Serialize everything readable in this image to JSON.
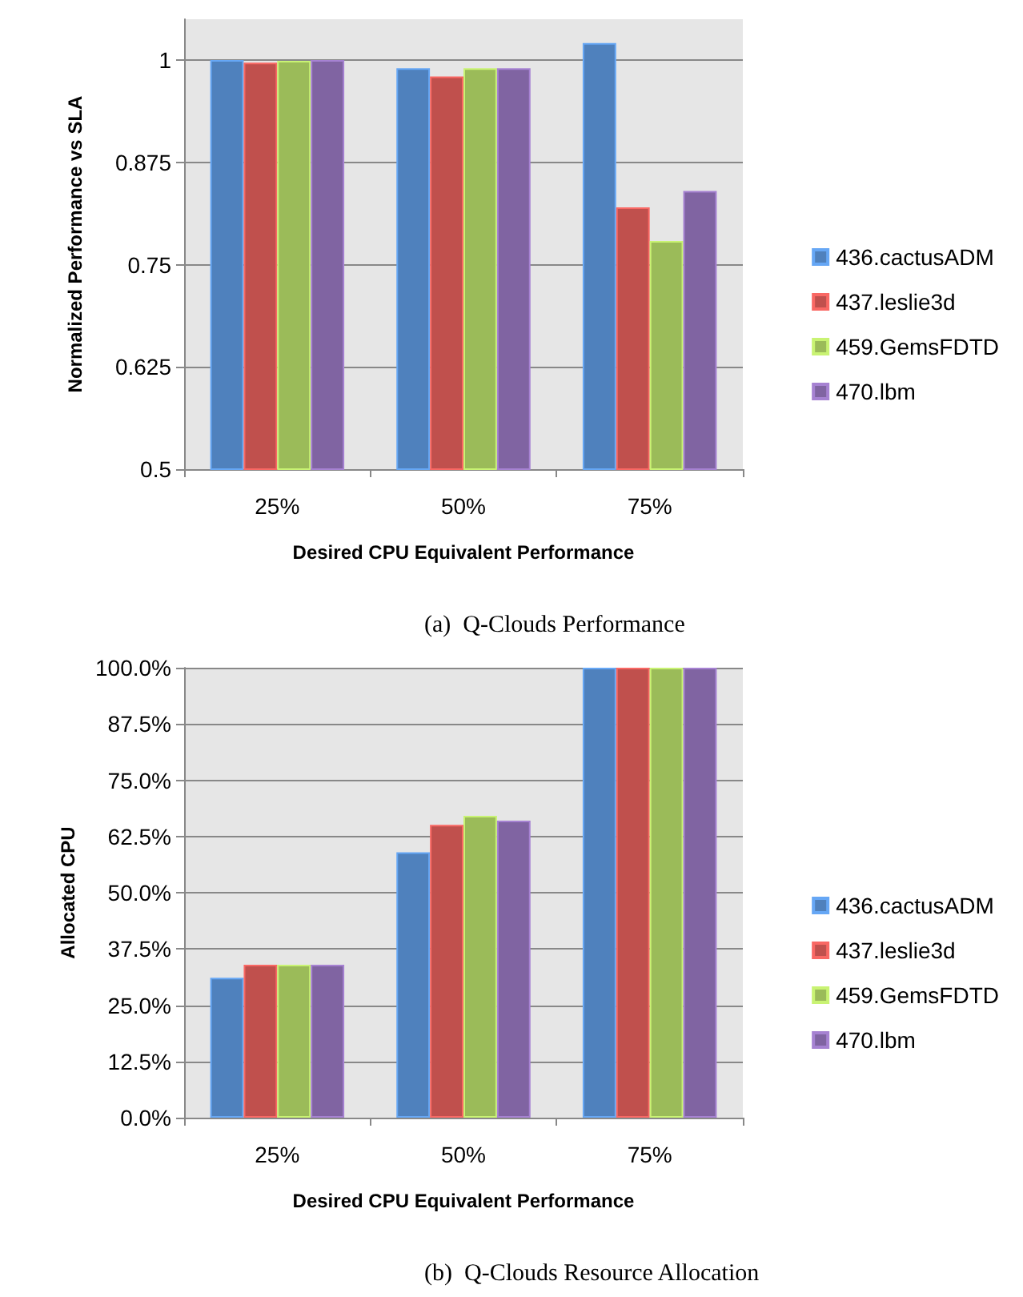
{
  "chart_data": [
    {
      "type": "bar",
      "title": "(a)  Q-Clouds Performance",
      "xlabel": "Desired CPU Equivalent Performance",
      "ylabel": "Normalized Performance vs SLA",
      "categories": [
        "25%",
        "50%",
        "75%"
      ],
      "series": [
        {
          "name": "436.cactusADM",
          "color": "#4f81bd",
          "values": [
            1.0,
            0.99,
            1.021
          ]
        },
        {
          "name": "437.leslie3d",
          "color": "#c0504d",
          "values": [
            0.997,
            0.98,
            0.82
          ]
        },
        {
          "name": "459.GemsFDTD",
          "color": "#9bbb59",
          "values": [
            0.999,
            0.99,
            0.779
          ]
        },
        {
          "name": "470.lbm",
          "color": "#8064a2",
          "values": [
            1.0,
            0.99,
            0.84
          ]
        }
      ],
      "ylim": [
        0.5,
        1.05
      ],
      "yticks": [
        0.5,
        0.625,
        0.75,
        0.875,
        1
      ],
      "grid": "y",
      "legend": "right"
    },
    {
      "type": "bar",
      "title": "(b)  Q-Clouds Resource Allocation",
      "xlabel": "Desired CPU Equivalent Performance",
      "ylabel": "Allocated CPU",
      "categories": [
        "25%",
        "50%",
        "75%"
      ],
      "series": [
        {
          "name": "436.cactusADM",
          "color": "#4f81bd",
          "values": [
            31.1,
            59.0,
            100
          ]
        },
        {
          "name": "437.leslie3d",
          "color": "#c0504d",
          "values": [
            34.0,
            65.1,
            100
          ]
        },
        {
          "name": "459.GemsFDTD",
          "color": "#9bbb59",
          "values": [
            34.0,
            67.1,
            100
          ]
        },
        {
          "name": "470.lbm",
          "color": "#8064a2",
          "values": [
            34.0,
            66.0,
            100
          ]
        }
      ],
      "ylim": [
        0,
        100
      ],
      "yticks": [
        {
          "value": 0,
          "label": "0.0%"
        },
        {
          "value": 12.5,
          "label": "12.5%"
        },
        {
          "value": 25,
          "label": "25.0%"
        },
        {
          "value": 37.5,
          "label": "37.5%"
        },
        {
          "value": 50,
          "label": "50.0%"
        },
        {
          "value": 62.5,
          "label": "62.5%"
        },
        {
          "value": 75,
          "label": "75.0%"
        },
        {
          "value": 87.5,
          "label": "87.5%"
        },
        {
          "value": 100,
          "label": "100.0%"
        }
      ],
      "grid": "y",
      "legend": "right"
    }
  ]
}
